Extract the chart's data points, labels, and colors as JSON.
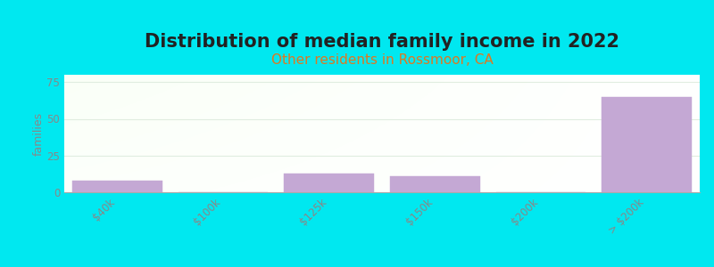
{
  "title": "Distribution of median family income in 2022",
  "subtitle": "Other residents in Rossmoor, CA",
  "categories": [
    "$40k",
    "$100k",
    "$125k",
    "$150k",
    "$200k",
    "> $200k"
  ],
  "values": [
    8,
    0,
    13,
    11,
    0,
    65
  ],
  "bar_color": "#c4a8d4",
  "bar_edge_color": "#c4a8d4",
  "ylabel": "families",
  "ylim": [
    0,
    80
  ],
  "yticks": [
    0,
    25,
    50,
    75
  ],
  "background_color": "#00e8f0",
  "title_fontsize": 15,
  "subtitle_fontsize": 11,
  "subtitle_color": "#e07820",
  "grid_color": "#e0ede0",
  "title_fontweight": "bold",
  "tick_color": "#888888",
  "tick_fontsize": 8.5
}
